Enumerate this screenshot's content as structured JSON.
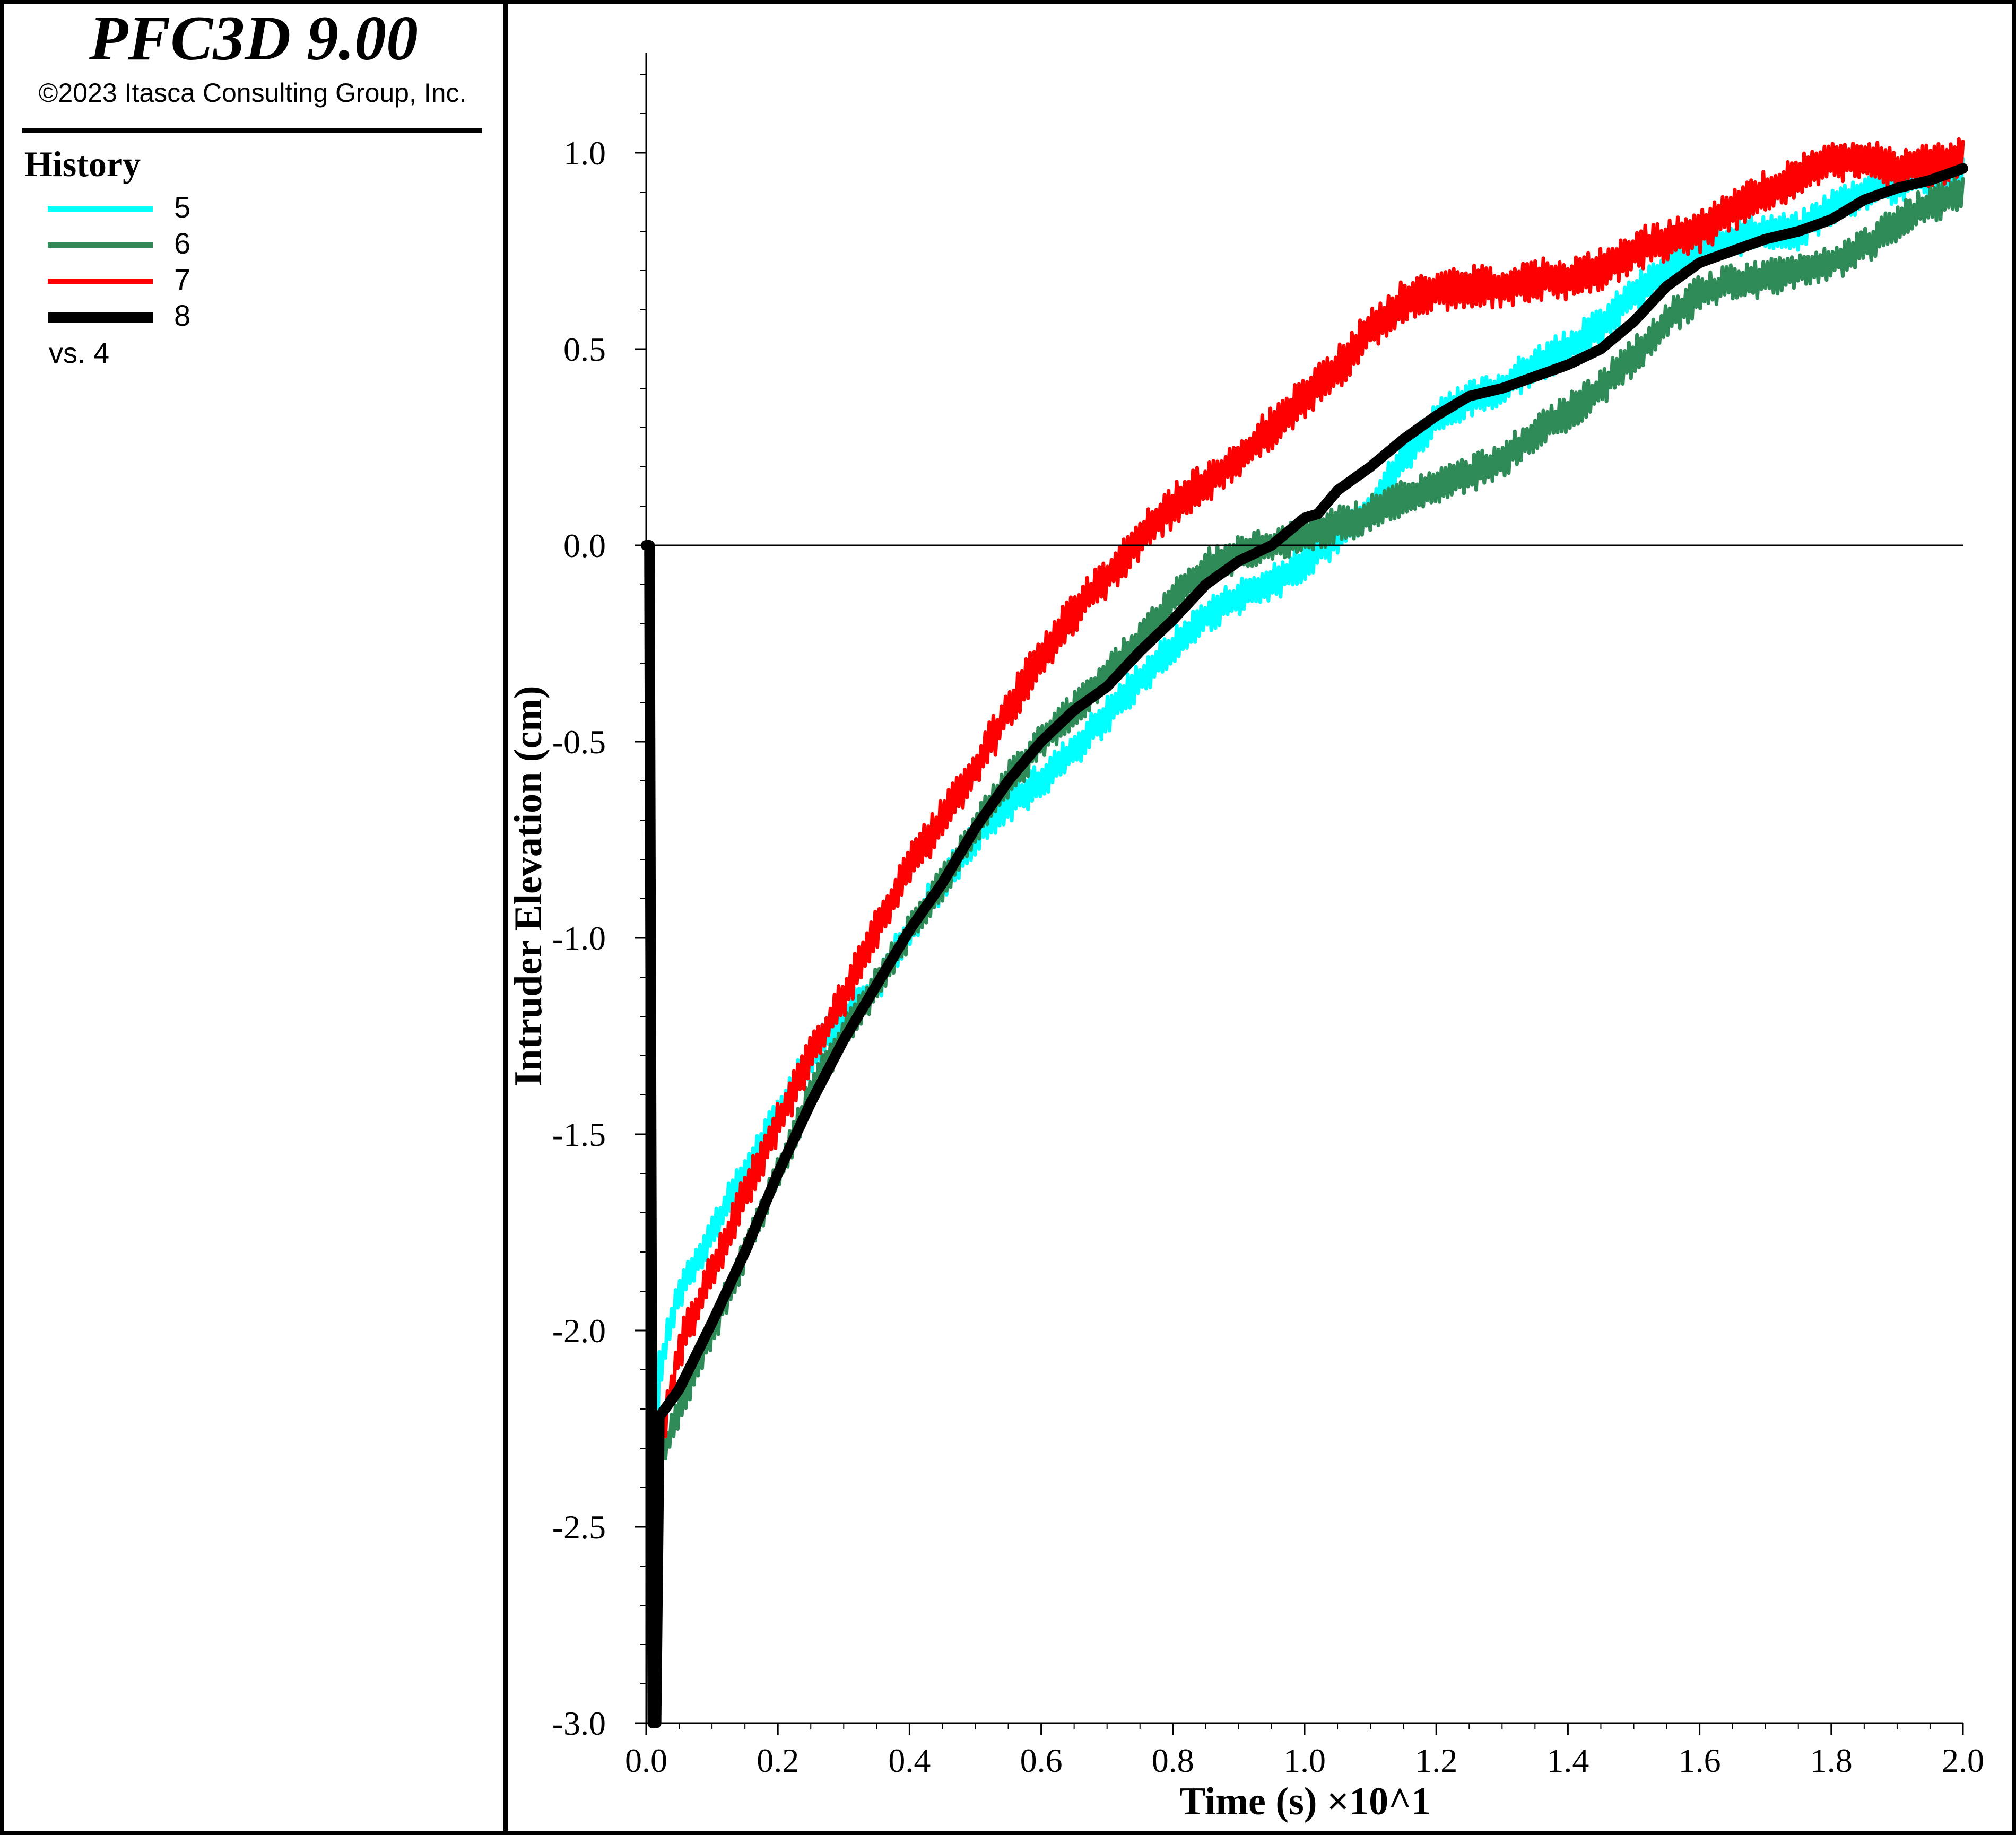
{
  "header": {
    "title": "PFC3D 9.00",
    "copyright": "©2023 Itasca Consulting Group, Inc."
  },
  "legend": {
    "heading": "History",
    "items": [
      {
        "label": "5",
        "color": "#00ffff"
      },
      {
        "label": "6",
        "color": "#2e8b57"
      },
      {
        "label": "7",
        "color": "#ff0000"
      },
      {
        "label": "8",
        "color": "#000000"
      }
    ],
    "footer": "vs. 4"
  },
  "chart_data": {
    "type": "line",
    "xlabel": "Time (s) ×10^1",
    "ylabel": "Intruder Elevation (cm)",
    "xlim": [
      0.0,
      2.0
    ],
    "ylim": [
      -3.0,
      1.25
    ],
    "xticks": [
      "0.0",
      "0.2",
      "0.4",
      "0.6",
      "0.8",
      "1.0",
      "1.2",
      "1.4",
      "1.6",
      "1.8",
      "2.0"
    ],
    "yticks": [
      "-3.0",
      "-2.5",
      "-2.0",
      "-1.5",
      "-1.0",
      "-0.5",
      "0.0",
      "0.5",
      "1.0"
    ],
    "zero_line": true,
    "grid": false,
    "series": [
      {
        "name": "5",
        "color": "#00ffff",
        "oscillation": 0.07,
        "x": [
          0.0,
          0.01,
          0.02,
          0.05,
          0.1,
          0.15,
          0.2,
          0.25,
          0.3,
          0.35,
          0.4,
          0.45,
          0.5,
          0.55,
          0.6,
          0.65,
          0.7,
          0.75,
          0.8,
          0.85,
          0.9,
          0.95,
          1.0,
          1.05,
          1.1,
          1.15,
          1.2,
          1.25,
          1.3,
          1.35,
          1.4,
          1.45,
          1.5,
          1.55,
          1.6,
          1.65,
          1.7,
          1.75,
          1.8,
          1.85,
          1.9,
          1.95,
          2.0
        ],
        "y": [
          0.0,
          -2.9,
          -2.1,
          -1.9,
          -1.75,
          -1.6,
          -1.45,
          -1.3,
          -1.2,
          -1.12,
          -0.98,
          -0.86,
          -0.74,
          -0.66,
          -0.6,
          -0.52,
          -0.43,
          -0.34,
          -0.26,
          -0.18,
          -0.13,
          -0.1,
          -0.04,
          0.02,
          0.1,
          0.22,
          0.32,
          0.37,
          0.4,
          0.46,
          0.5,
          0.56,
          0.64,
          0.7,
          0.76,
          0.78,
          0.8,
          0.8,
          0.86,
          0.9,
          0.92,
          0.94,
          0.96
        ]
      },
      {
        "name": "6",
        "color": "#2e8b57",
        "oscillation": 0.07,
        "x": [
          0.0,
          0.01,
          0.02,
          0.05,
          0.1,
          0.15,
          0.2,
          0.25,
          0.3,
          0.35,
          0.4,
          0.45,
          0.5,
          0.55,
          0.6,
          0.65,
          0.7,
          0.75,
          0.8,
          0.85,
          0.9,
          0.95,
          1.0,
          1.05,
          1.1,
          1.15,
          1.2,
          1.25,
          1.3,
          1.35,
          1.4,
          1.45,
          1.5,
          1.55,
          1.6,
          1.65,
          1.7,
          1.75,
          1.8,
          1.85,
          1.9,
          1.95,
          2.0
        ],
        "y": [
          0.0,
          -2.9,
          -2.35,
          -2.2,
          -2.0,
          -1.8,
          -1.6,
          -1.4,
          -1.24,
          -1.12,
          -0.98,
          -0.86,
          -0.72,
          -0.6,
          -0.5,
          -0.42,
          -0.33,
          -0.24,
          -0.14,
          -0.06,
          -0.02,
          0.0,
          0.03,
          0.05,
          0.08,
          0.12,
          0.15,
          0.18,
          0.22,
          0.28,
          0.34,
          0.4,
          0.48,
          0.57,
          0.64,
          0.67,
          0.68,
          0.7,
          0.72,
          0.76,
          0.82,
          0.87,
          0.9
        ]
      },
      {
        "name": "7",
        "color": "#ff0000",
        "oscillation": 0.08,
        "x": [
          0.0,
          0.01,
          0.02,
          0.05,
          0.1,
          0.15,
          0.2,
          0.25,
          0.3,
          0.35,
          0.4,
          0.45,
          0.5,
          0.55,
          0.6,
          0.65,
          0.7,
          0.75,
          0.8,
          0.85,
          0.9,
          0.95,
          1.0,
          1.05,
          1.1,
          1.15,
          1.2,
          1.25,
          1.3,
          1.35,
          1.4,
          1.45,
          1.5,
          1.55,
          1.6,
          1.65,
          1.7,
          1.75,
          1.8,
          1.85,
          1.9,
          1.95,
          2.0
        ],
        "y": [
          0.0,
          -3.0,
          -2.3,
          -2.05,
          -1.85,
          -1.65,
          -1.47,
          -1.3,
          -1.15,
          -0.98,
          -0.82,
          -0.7,
          -0.57,
          -0.42,
          -0.28,
          -0.17,
          -0.08,
          0.02,
          0.1,
          0.16,
          0.22,
          0.3,
          0.38,
          0.45,
          0.55,
          0.62,
          0.65,
          0.66,
          0.66,
          0.68,
          0.68,
          0.7,
          0.75,
          0.78,
          0.8,
          0.85,
          0.9,
          0.94,
          0.98,
          0.98,
          0.96,
          0.97,
          0.98
        ]
      },
      {
        "name": "8",
        "color": "#000000",
        "oscillation": 0.0,
        "x": [
          0.0,
          0.005,
          0.01,
          0.015,
          0.02,
          0.05,
          0.1,
          0.15,
          0.2,
          0.25,
          0.3,
          0.35,
          0.4,
          0.45,
          0.5,
          0.55,
          0.6,
          0.65,
          0.7,
          0.75,
          0.8,
          0.85,
          0.9,
          0.95,
          1.0,
          1.02,
          1.05,
          1.1,
          1.15,
          1.2,
          1.25,
          1.3,
          1.35,
          1.4,
          1.45,
          1.5,
          1.55,
          1.6,
          1.65,
          1.7,
          1.75,
          1.8,
          1.85,
          1.9,
          1.95,
          2.0
        ],
        "y": [
          0.0,
          0.0,
          -3.0,
          -3.0,
          -2.22,
          -2.15,
          -1.98,
          -1.8,
          -1.6,
          -1.42,
          -1.26,
          -1.12,
          -0.98,
          -0.86,
          -0.72,
          -0.6,
          -0.5,
          -0.42,
          -0.36,
          -0.27,
          -0.19,
          -0.1,
          -0.04,
          0.0,
          0.07,
          0.08,
          0.14,
          0.2,
          0.27,
          0.33,
          0.38,
          0.4,
          0.43,
          0.46,
          0.5,
          0.57,
          0.66,
          0.72,
          0.75,
          0.78,
          0.8,
          0.83,
          0.88,
          0.91,
          0.93,
          0.96
        ]
      }
    ]
  }
}
